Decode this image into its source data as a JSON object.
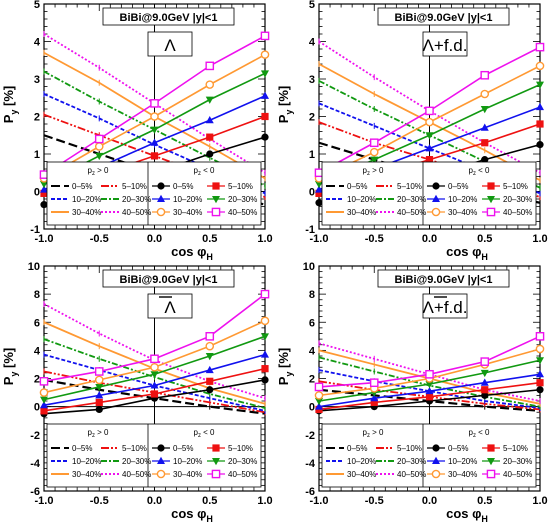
{
  "figure": {
    "colors": {
      "0-5%": "#000000",
      "5-10%": "#ee1111",
      "10-20%": "#1111ee",
      "20-30%": "#119911",
      "30-40%": "#ff9933",
      "40-50%": "#ee11ee"
    }
  },
  "chart_data": [
    {
      "type": "line",
      "title": "BiBi@9.0GeV  |y|<1",
      "particle": "Λ",
      "particle_bar": false,
      "xlabel": "cos φH",
      "ylabel": "Py [%]",
      "xlim": [
        -1.0,
        1.0
      ],
      "ylim": [
        -1,
        5
      ],
      "xticks": [
        -1.0,
        -0.5,
        0.0,
        0.5,
        1.0
      ],
      "yticks": [
        -1,
        0,
        1,
        2,
        3,
        4,
        5
      ],
      "x": [
        -1.0,
        -0.5,
        0.0,
        0.5,
        1.0
      ],
      "legend_left_title": "pz > 0",
      "legend_right_title": "pz < 0",
      "series_pos": [
        {
          "name": "0–5%",
          "values": [
            1.5,
            1.0,
            0.5,
            0.0,
            -0.35
          ]
        },
        {
          "name": "5–10%",
          "values": [
            2.05,
            1.5,
            0.95,
            0.4,
            -0.15
          ]
        },
        {
          "name": "10–20%",
          "values": [
            2.6,
            1.95,
            1.25,
            0.6,
            -0.05
          ]
        },
        {
          "name": "20–30%",
          "values": [
            3.2,
            2.4,
            1.65,
            0.9,
            0.15
          ]
        },
        {
          "name": "30–40%",
          "values": [
            3.7,
            2.9,
            2.0,
            1.2,
            0.35
          ]
        },
        {
          "name": "40–50%",
          "values": [
            4.2,
            3.3,
            2.35,
            1.4,
            0.5
          ]
        }
      ],
      "series_neg": [
        {
          "name": "0–5%",
          "values": [
            -0.35,
            0.0,
            0.5,
            1.0,
            1.45
          ]
        },
        {
          "name": "5–10%",
          "values": [
            -0.05,
            0.45,
            0.95,
            1.45,
            2.0
          ]
        },
        {
          "name": "10–20%",
          "values": [
            0.05,
            0.65,
            1.3,
            1.9,
            2.55
          ]
        },
        {
          "name": "20–30%",
          "values": [
            0.2,
            0.95,
            1.65,
            2.45,
            3.15
          ]
        },
        {
          "name": "30–40%",
          "values": [
            0.35,
            1.2,
            2.0,
            2.85,
            3.65
          ]
        },
        {
          "name": "40–50%",
          "values": [
            0.45,
            1.4,
            2.35,
            3.35,
            4.15
          ]
        }
      ]
    },
    {
      "type": "line",
      "title": "BiBi@9.0GeV  |y|<1",
      "particle": "Λ+f.d.",
      "particle_bar": false,
      "xlabel": "cos φH",
      "ylabel": "Py [%]",
      "xlim": [
        -1.0,
        1.0
      ],
      "ylim": [
        -1,
        5
      ],
      "xticks": [
        -1.0,
        -0.5,
        0.0,
        0.5,
        1.0
      ],
      "yticks": [
        -1,
        0,
        1,
        2,
        3,
        4,
        5
      ],
      "x": [
        -1.0,
        -0.5,
        0.0,
        0.5,
        1.0
      ],
      "legend_left_title": "pz > 0",
      "legend_right_title": "pz < 0",
      "series_pos": [
        {
          "name": "0–5%",
          "values": [
            1.3,
            0.85,
            0.4,
            0.0,
            -0.3
          ]
        },
        {
          "name": "5–10%",
          "values": [
            1.85,
            1.3,
            0.85,
            0.35,
            -0.15
          ]
        },
        {
          "name": "10–20%",
          "values": [
            2.35,
            1.75,
            1.15,
            0.55,
            -0.05
          ]
        },
        {
          "name": "20–30%",
          "values": [
            2.95,
            2.2,
            1.5,
            0.8,
            0.1
          ]
        },
        {
          "name": "30–40%",
          "values": [
            3.4,
            2.6,
            1.85,
            1.1,
            0.3
          ]
        },
        {
          "name": "40–50%",
          "values": [
            4.0,
            3.05,
            2.15,
            1.3,
            0.5
          ]
        }
      ],
      "series_neg": [
        {
          "name": "0–5%",
          "values": [
            -0.3,
            0.0,
            0.4,
            0.85,
            1.25
          ]
        },
        {
          "name": "5–10%",
          "values": [
            -0.05,
            0.4,
            0.85,
            1.3,
            1.8
          ]
        },
        {
          "name": "10–20%",
          "values": [
            0.05,
            0.6,
            1.15,
            1.7,
            2.25
          ]
        },
        {
          "name": "20–30%",
          "values": [
            0.2,
            0.85,
            1.5,
            2.2,
            2.85
          ]
        },
        {
          "name": "30–40%",
          "values": [
            0.35,
            1.05,
            1.85,
            2.6,
            3.35
          ]
        },
        {
          "name": "40–50%",
          "values": [
            0.5,
            1.3,
            2.15,
            3.1,
            3.85
          ]
        }
      ]
    },
    {
      "type": "line",
      "title": "BiBi@9.0GeV  |y|<1",
      "particle": "Λ",
      "particle_bar": true,
      "xlabel": "cos φH",
      "ylabel": "Py [%]",
      "xlim": [
        -1.0,
        1.0
      ],
      "ylim": [
        -6,
        10
      ],
      "xticks": [
        -1.0,
        -0.5,
        0.0,
        0.5,
        1.0
      ],
      "yticks": [
        -6,
        -4,
        -2,
        0,
        2,
        4,
        6,
        8,
        10
      ],
      "x": [
        -1.0,
        -0.5,
        0.0,
        0.5,
        1.0
      ],
      "legend_left_title": "pz > 0",
      "legend_right_title": "pz < 0",
      "series_pos": [
        {
          "name": "0–5%",
          "values": [
            1.9,
            1.2,
            0.6,
            0.0,
            -0.5
          ]
        },
        {
          "name": "5–10%",
          "values": [
            2.5,
            1.7,
            1.0,
            0.3,
            -0.4
          ]
        },
        {
          "name": "10–20%",
          "values": [
            3.7,
            2.6,
            1.5,
            0.6,
            -0.3
          ]
        },
        {
          "name": "20–30%",
          "values": [
            4.8,
            3.4,
            2.1,
            0.9,
            -0.1
          ]
        },
        {
          "name": "30–40%",
          "values": [
            6.0,
            4.3,
            2.7,
            1.3,
            0.2
          ]
        },
        {
          "name": "40–50%",
          "values": [
            7.3,
            5.2,
            3.3,
            1.8,
            0.6
          ]
        }
      ],
      "series_neg": [
        {
          "name": "0–5%",
          "values": [
            -0.5,
            -0.2,
            0.6,
            1.2,
            1.9
          ]
        },
        {
          "name": "5–10%",
          "values": [
            -0.3,
            0.3,
            0.9,
            1.8,
            2.7
          ]
        },
        {
          "name": "10–20%",
          "values": [
            0.1,
            0.8,
            1.5,
            2.6,
            3.7
          ]
        },
        {
          "name": "20–30%",
          "values": [
            0.5,
            1.4,
            2.3,
            3.6,
            5.0
          ]
        },
        {
          "name": "30–40%",
          "values": [
            1.0,
            1.9,
            2.8,
            4.3,
            6.1
          ]
        },
        {
          "name": "40–50%",
          "values": [
            1.8,
            2.5,
            3.4,
            5.0,
            8.0
          ]
        }
      ]
    },
    {
      "type": "line",
      "title": "BiBi@9.0GeV  |y|<1",
      "particle": "Λ+f.d.",
      "particle_bar": true,
      "xlabel": "cos φH",
      "ylabel": "Py [%]",
      "xlim": [
        -1.0,
        1.0
      ],
      "ylim": [
        -6,
        10
      ],
      "xticks": [
        -1.0,
        -0.5,
        0.0,
        0.5,
        1.0
      ],
      "yticks": [
        -6,
        -4,
        -2,
        0,
        2,
        4,
        6,
        8,
        10
      ],
      "x": [
        -1.0,
        -0.5,
        0.0,
        0.5,
        1.0
      ],
      "legend_left_title": "pz > 0",
      "legend_right_title": "pz < 0",
      "series_pos": [
        {
          "name": "0–5%",
          "values": [
            1.2,
            0.8,
            0.4,
            0.0,
            -0.3
          ]
        },
        {
          "name": "5–10%",
          "values": [
            1.8,
            1.2,
            0.7,
            0.2,
            -0.2
          ]
        },
        {
          "name": "10–20%",
          "values": [
            2.6,
            1.8,
            1.1,
            0.4,
            -0.1
          ]
        },
        {
          "name": "20–30%",
          "values": [
            3.5,
            2.5,
            1.5,
            0.7,
            0.0
          ]
        },
        {
          "name": "30–40%",
          "values": [
            4.0,
            3.0,
            2.0,
            1.0,
            0.2
          ]
        },
        {
          "name": "40–50%",
          "values": [
            4.5,
            3.4,
            2.3,
            1.2,
            0.4
          ]
        }
      ],
      "series_neg": [
        {
          "name": "0–5%",
          "values": [
            -0.3,
            0.0,
            0.4,
            0.8,
            1.2
          ]
        },
        {
          "name": "5–10%",
          "values": [
            -0.2,
            0.3,
            0.7,
            1.2,
            1.7
          ]
        },
        {
          "name": "10–20%",
          "values": [
            0.0,
            0.6,
            1.1,
            1.7,
            2.3
          ]
        },
        {
          "name": "20–30%",
          "values": [
            0.4,
            1.0,
            1.6,
            2.4,
            3.3
          ]
        },
        {
          "name": "30–40%",
          "values": [
            0.8,
            1.3,
            2.0,
            3.0,
            4.1
          ]
        },
        {
          "name": "40–50%",
          "values": [
            1.4,
            1.7,
            2.3,
            3.2,
            5.0
          ]
        }
      ]
    }
  ]
}
